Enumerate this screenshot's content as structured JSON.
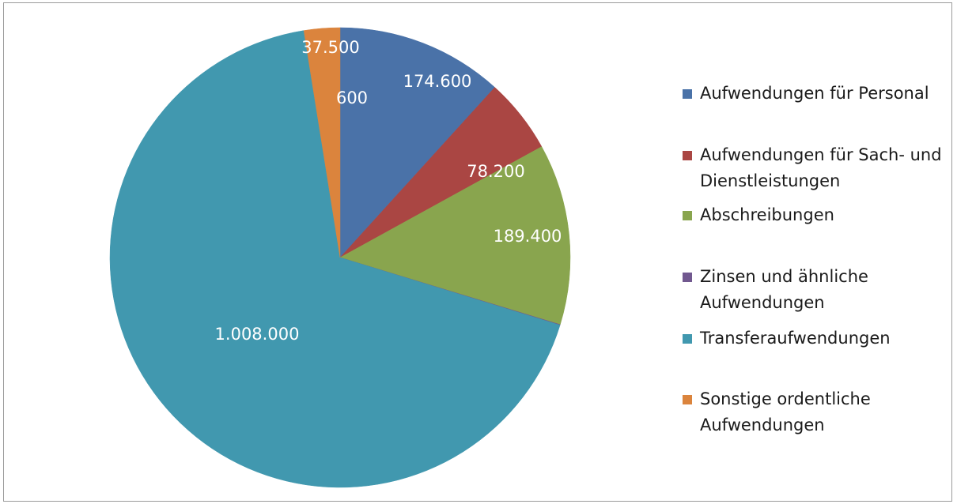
{
  "chart_data": {
    "type": "pie",
    "series": [
      {
        "name": "Aufwendungen für Personal",
        "value": 174600,
        "label": "174.600",
        "color": "#4A72A8"
      },
      {
        "name": "Aufwendungen für Sach- und Dienstleistungen",
        "value": 78200,
        "label": "78.200",
        "color": "#AA4643"
      },
      {
        "name": "Abschreibungen",
        "value": 189400,
        "label": "189.400",
        "color": "#89A54E"
      },
      {
        "name": "Zinsen und ähnliche Aufwendungen",
        "value": 600,
        "label": "600",
        "color": "#71588F"
      },
      {
        "name": "Transferaufwendungen",
        "value": 1008000,
        "label": "1.008.000",
        "color": "#4198AF"
      },
      {
        "name": "Sonstige ordentliche Aufwendungen",
        "value": 37500,
        "label": "37.500",
        "color": "#DB843D"
      }
    ],
    "legend": {
      "position": "right",
      "lines": [
        [
          "Aufwendungen für Personal"
        ],
        [
          "Aufwendungen für Sach- und",
          "Dienstleistungen"
        ],
        [
          "Abschreibungen"
        ],
        [
          "Zinsen und ähnliche",
          "Aufwendungen"
        ],
        [
          "Transferaufwendungen"
        ],
        [
          "Sonstige ordentliche",
          "Aufwendungen"
        ]
      ]
    },
    "data_labels_shown": true,
    "start_angle_deg": 0,
    "direction": "clockwise"
  }
}
